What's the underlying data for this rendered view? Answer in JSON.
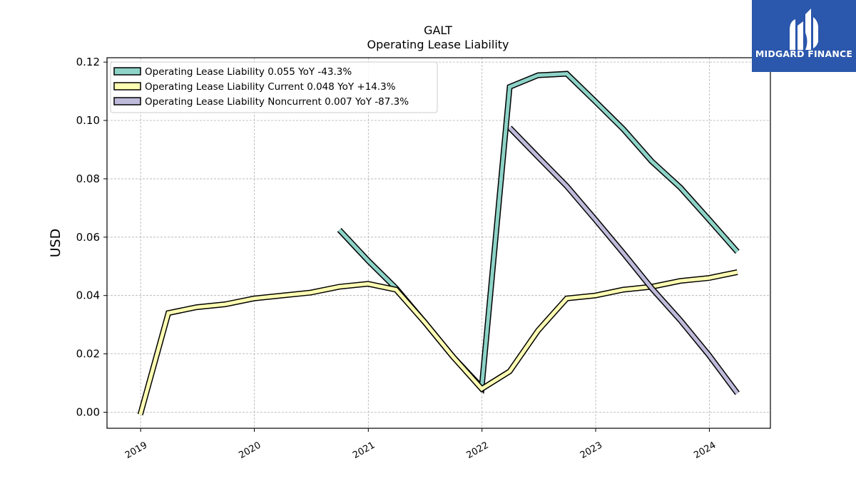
{
  "brand": {
    "name": "MIDGARD FINANCE",
    "bg_color": "#2b57ac",
    "icon": "midgard-logo-icon"
  },
  "chart_data": {
    "type": "line",
    "title": "GALT",
    "subtitle": "Operating Lease Liability",
    "xlabel": "",
    "ylabel": "USD",
    "xlim": [
      "2018-09-15",
      "2024-07-15"
    ],
    "ylim": [
      -0.0055,
      0.1215
    ],
    "yticks": [
      0.0,
      0.02,
      0.04,
      0.06,
      0.08,
      0.1,
      0.12
    ],
    "ytick_labels": [
      "0.00",
      "0.02",
      "0.04",
      "0.06",
      "0.08",
      "0.10",
      "0.12"
    ],
    "xticks": [
      "2019-01-01",
      "2020-01-01",
      "2021-01-01",
      "2022-01-01",
      "2023-01-01",
      "2024-01-01"
    ],
    "xtick_labels": [
      "2019",
      "2020",
      "2021",
      "2022",
      "2023",
      "2024"
    ],
    "grid": true,
    "legend_position": "top-left",
    "series": [
      {
        "name": "Operating Lease Liability",
        "legend_label": "Operating Lease Liability  0.055 YoY -43.3%",
        "color": "#8dd3c7",
        "x": [
          "2020-09-30",
          "2020-12-31",
          "2021-03-31",
          "2021-06-30",
          "2021-09-30",
          "2021-12-31",
          "2022-03-31",
          "2022-06-30",
          "2022-09-30",
          "2022-12-31",
          "2023-03-31",
          "2023-06-30",
          "2023-09-30",
          "2023-12-31",
          "2024-03-31"
        ],
        "y": [
          0.0625,
          0.052,
          0.0425,
          0.031,
          0.019,
          0.0085,
          0.1115,
          0.1155,
          0.116,
          0.1065,
          0.097,
          0.086,
          0.077,
          0.066,
          0.055
        ]
      },
      {
        "name": "Operating Lease Liability Current",
        "legend_label": "Operating Lease Liability Current  0.048 YoY +14.3%",
        "color": "#ffffb3",
        "x": [
          "2018-12-31",
          "2019-03-31",
          "2019-06-30",
          "2019-09-30",
          "2019-12-31",
          "2020-03-31",
          "2020-06-30",
          "2020-09-30",
          "2020-12-31",
          "2021-03-31",
          "2021-06-30",
          "2021-09-30",
          "2021-12-31",
          "2022-03-31",
          "2022-06-30",
          "2022-09-30",
          "2022-12-31",
          "2023-03-31",
          "2023-06-30",
          "2023-09-30",
          "2023-12-31",
          "2024-03-31"
        ],
        "y": [
          -0.0008,
          0.034,
          0.036,
          0.037,
          0.039,
          0.04,
          0.041,
          0.043,
          0.044,
          0.042,
          0.031,
          0.019,
          0.008,
          0.014,
          0.028,
          0.039,
          0.04,
          0.042,
          0.043,
          0.045,
          0.046,
          0.048
        ]
      },
      {
        "name": "Operating Lease Liability Noncurrent",
        "legend_label": "Operating Lease Liability Noncurrent  0.007 YoY -87.3%",
        "color": "#bebada",
        "x": [
          "2022-03-31",
          "2022-06-30",
          "2022-09-30",
          "2022-12-31",
          "2023-03-31",
          "2023-06-30",
          "2023-09-30",
          "2023-12-31",
          "2024-03-31"
        ],
        "y": [
          0.0975,
          0.0875,
          0.0775,
          0.066,
          0.0545,
          0.0425,
          0.0315,
          0.0195,
          0.0065
        ]
      }
    ]
  }
}
